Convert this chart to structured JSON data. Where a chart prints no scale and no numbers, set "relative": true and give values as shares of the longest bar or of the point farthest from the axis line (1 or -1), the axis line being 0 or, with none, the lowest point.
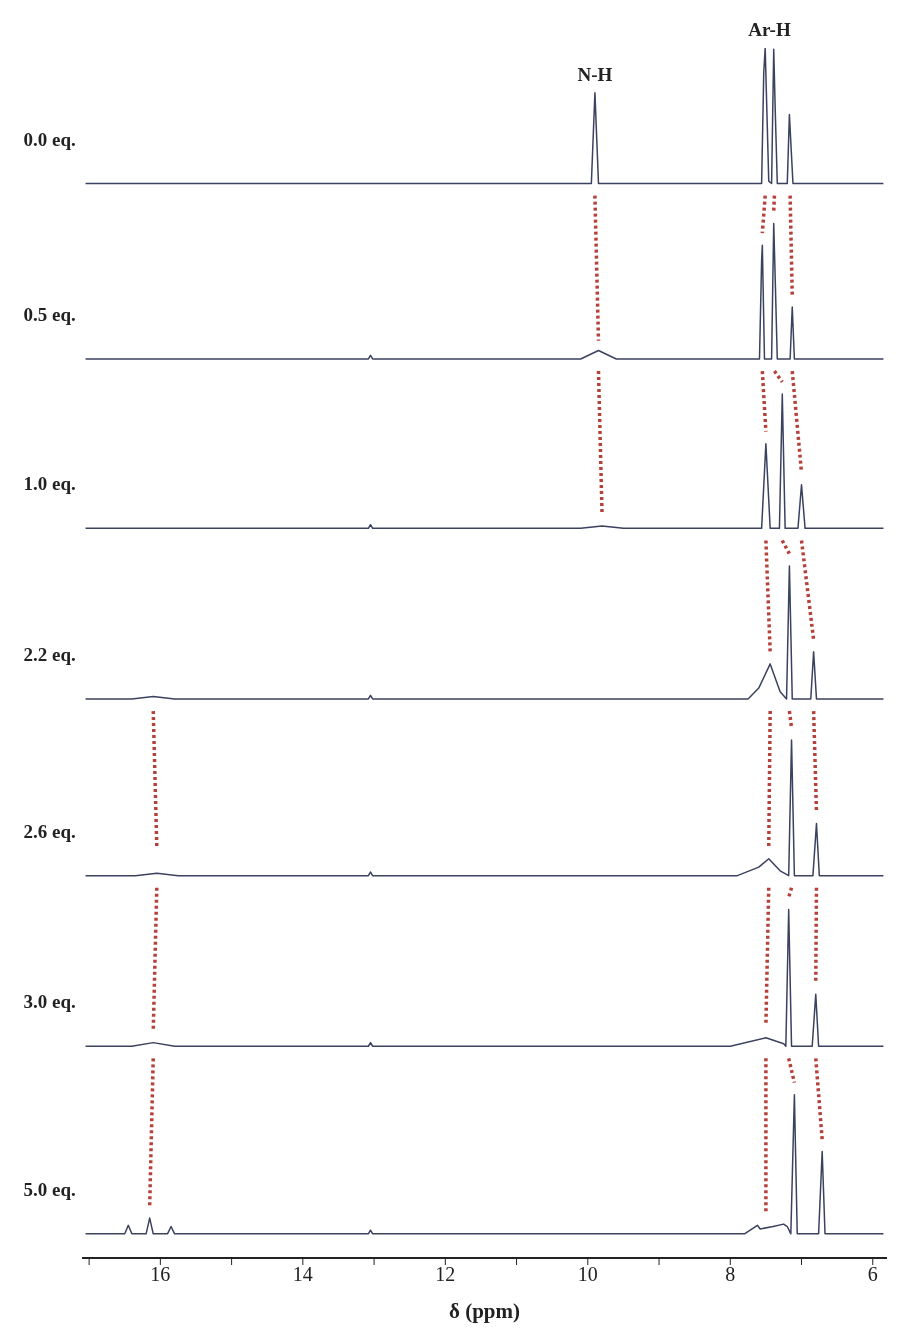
{
  "chart_data": {
    "type": "line",
    "relative": true,
    "xlim": [
      17.1,
      5.8
    ],
    "tick_labels": "x",
    "xlabel": "δ (ppm)",
    "xticks": [
      {
        "value": 17,
        "label": null
      },
      16,
      {
        "value": 15,
        "label": null
      },
      14,
      {
        "value": 13,
        "label": null
      },
      12,
      {
        "value": 11,
        "label": null
      },
      10,
      {
        "value": 9,
        "label": null
      },
      8,
      {
        "value": 7,
        "label": null
      },
      6
    ],
    "annotations": [
      {
        "text": "N-H",
        "x": 9.9,
        "y": 0.963
      },
      {
        "text": "Ar-H",
        "x": 7.45,
        "y": 1.0
      }
    ],
    "series": [
      {
        "name": "0.0 eq.",
        "color": "#3b4260",
        "x": [
          17.05,
          9.95,
          9.9,
          9.85,
          7.56,
          7.53,
          7.51,
          7.46,
          7.42,
          7.39,
          7.37,
          7.34,
          7.2,
          7.17,
          7.15,
          7.12,
          5.85
        ],
        "values": [
          0.888,
          0.888,
          0.963,
          0.888,
          0.888,
          0.98,
          1.0,
          0.89,
          0.888,
          0.999,
          0.951,
          0.888,
          0.888,
          0.945,
          0.922,
          0.888,
          0.888
        ]
      },
      {
        "name": "0.5 eq.",
        "color": "#3b4260",
        "x": [
          17.05,
          13.08,
          13.05,
          13.02,
          10.1,
          9.85,
          9.6,
          7.59,
          7.56,
          7.55,
          7.52,
          7.42,
          7.39,
          7.37,
          7.34,
          7.16,
          7.13,
          7.1,
          5.85
        ],
        "values": [
          0.743,
          0.743,
          0.746,
          0.743,
          0.743,
          0.75,
          0.743,
          0.743,
          0.824,
          0.837,
          0.743,
          0.743,
          0.855,
          0.811,
          0.743,
          0.743,
          0.786,
          0.743,
          0.743
        ]
      },
      {
        "name": "1.0 eq.",
        "color": "#3b4260",
        "x": [
          17.05,
          13.08,
          13.05,
          13.02,
          10.1,
          9.8,
          9.5,
          7.56,
          7.5,
          7.44,
          7.31,
          7.27,
          7.23,
          7.05,
          7.0,
          6.95,
          5.85
        ],
        "values": [
          0.603,
          0.603,
          0.606,
          0.603,
          0.603,
          0.605,
          0.603,
          0.603,
          0.673,
          0.603,
          0.603,
          0.714,
          0.603,
          0.603,
          0.639,
          0.603,
          0.603
        ]
      },
      {
        "name": "2.2 eq.",
        "color": "#3b4260",
        "x": [
          17.05,
          16.4,
          16.1,
          15.8,
          13.08,
          13.05,
          13.02,
          7.75,
          7.6,
          7.44,
          7.3,
          7.21,
          7.17,
          7.13,
          6.87,
          6.83,
          6.79,
          5.85
        ],
        "values": [
          0.462,
          0.462,
          0.464,
          0.462,
          0.462,
          0.465,
          0.462,
          0.462,
          0.471,
          0.491,
          0.468,
          0.462,
          0.572,
          0.462,
          0.462,
          0.501,
          0.462,
          0.462
        ]
      },
      {
        "name": "2.6 eq.",
        "color": "#3b4260",
        "x": [
          17.05,
          16.35,
          16.05,
          15.75,
          13.08,
          13.05,
          13.02,
          7.9,
          7.6,
          7.46,
          7.3,
          7.18,
          7.14,
          7.1,
          6.84,
          6.79,
          6.75,
          5.85
        ],
        "values": [
          0.316,
          0.316,
          0.318,
          0.316,
          0.316,
          0.319,
          0.316,
          0.316,
          0.323,
          0.33,
          0.32,
          0.316,
          0.428,
          0.316,
          0.316,
          0.359,
          0.316,
          0.316
        ]
      },
      {
        "name": "3.0 eq.",
        "color": "#3b4260",
        "x": [
          17.05,
          16.4,
          16.1,
          15.8,
          13.08,
          13.05,
          13.02,
          8.0,
          7.5,
          7.25,
          7.22,
          7.18,
          7.14,
          6.85,
          6.8,
          6.76,
          5.85
        ],
        "values": [
          0.175,
          0.175,
          0.178,
          0.175,
          0.175,
          0.178,
          0.175,
          0.175,
          0.182,
          0.177,
          0.175,
          0.288,
          0.175,
          0.175,
          0.218,
          0.175,
          0.175
        ]
      },
      {
        "name": "5.0 eq.",
        "color": "#3b4260",
        "x": [
          17.05,
          16.5,
          16.45,
          16.4,
          16.2,
          16.15,
          16.1,
          15.9,
          15.85,
          15.8,
          13.08,
          13.05,
          13.02,
          7.8,
          7.62,
          7.58,
          7.4,
          7.25,
          7.2,
          7.15,
          7.1,
          7.06,
          6.76,
          6.71,
          6.67,
          5.85
        ],
        "values": [
          0.02,
          0.02,
          0.027,
          0.02,
          0.02,
          0.033,
          0.02,
          0.02,
          0.026,
          0.02,
          0.02,
          0.023,
          0.02,
          0.02,
          0.027,
          0.024,
          0.026,
          0.028,
          0.026,
          0.02,
          0.135,
          0.02,
          0.02,
          0.088,
          0.02,
          0.02
        ]
      },
      {
        "color": "#b5413a",
        "line_style": "dotted",
        "x": [
          9.9,
          9.85
        ],
        "values": [
          0.878,
          0.758
        ]
      },
      {
        "color": "#b5413a",
        "line_style": "dotted",
        "x": [
          7.51,
          7.55
        ],
        "values": [
          0.878,
          0.847
        ]
      },
      {
        "color": "#b5413a",
        "line_style": "dotted",
        "x": [
          7.38,
          7.39
        ],
        "values": [
          0.878,
          0.865
        ]
      },
      {
        "color": "#b5413a",
        "line_style": "dotted",
        "x": [
          7.16,
          7.13
        ],
        "values": [
          0.878,
          0.796
        ]
      },
      {
        "color": "#b5413a",
        "line_style": "dotted",
        "x": [
          9.85,
          9.8
        ],
        "values": [
          0.733,
          0.615
        ]
      },
      {
        "color": "#b5413a",
        "line_style": "dotted",
        "x": [
          7.55,
          7.5
        ],
        "values": [
          0.733,
          0.683
        ]
      },
      {
        "color": "#b5413a",
        "line_style": "dotted",
        "x": [
          7.38,
          7.27
        ],
        "values": [
          0.733,
          0.724
        ]
      },
      {
        "color": "#b5413a",
        "line_style": "dotted",
        "x": [
          7.13,
          7.0
        ],
        "values": [
          0.733,
          0.649
        ]
      },
      {
        "color": "#b5413a",
        "line_style": "dotted",
        "x": [
          7.5,
          7.44
        ],
        "values": [
          0.593,
          0.501
        ]
      },
      {
        "color": "#b5413a",
        "line_style": "dotted",
        "x": [
          7.27,
          7.17
        ],
        "values": [
          0.593,
          0.582
        ]
      },
      {
        "color": "#b5413a",
        "line_style": "dotted",
        "x": [
          7.0,
          6.83
        ],
        "values": [
          0.593,
          0.511
        ]
      },
      {
        "color": "#b5413a",
        "line_style": "dotted",
        "x": [
          16.1,
          16.05
        ],
        "values": [
          0.452,
          0.34
        ]
      },
      {
        "color": "#b5413a",
        "line_style": "dotted",
        "x": [
          7.44,
          7.46
        ],
        "values": [
          0.452,
          0.34
        ]
      },
      {
        "color": "#b5413a",
        "line_style": "dotted",
        "x": [
          7.17,
          7.14
        ],
        "values": [
          0.452,
          0.438
        ]
      },
      {
        "color": "#b5413a",
        "line_style": "dotted",
        "x": [
          6.83,
          6.79
        ],
        "values": [
          0.452,
          0.369
        ]
      },
      {
        "color": "#b5413a",
        "line_style": "dotted",
        "x": [
          16.05,
          16.1
        ],
        "values": [
          0.306,
          0.188
        ]
      },
      {
        "color": "#b5413a",
        "line_style": "dotted",
        "x": [
          7.46,
          7.5
        ],
        "values": [
          0.306,
          0.192
        ]
      },
      {
        "color": "#b5413a",
        "line_style": "dotted",
        "x": [
          7.14,
          7.18
        ],
        "values": [
          0.306,
          0.298
        ]
      },
      {
        "color": "#b5413a",
        "line_style": "dotted",
        "x": [
          6.79,
          6.8
        ],
        "values": [
          0.306,
          0.228
        ]
      },
      {
        "color": "#b5413a",
        "line_style": "dotted",
        "x": [
          16.1,
          16.15
        ],
        "values": [
          0.165,
          0.043
        ]
      },
      {
        "color": "#b5413a",
        "line_style": "dotted",
        "x": [
          7.5,
          7.5
        ],
        "values": [
          0.165,
          0.037
        ]
      },
      {
        "color": "#b5413a",
        "line_style": "dotted",
        "x": [
          7.18,
          7.1
        ],
        "values": [
          0.165,
          0.145
        ]
      },
      {
        "color": "#b5413a",
        "line_style": "dotted",
        "x": [
          6.8,
          6.71
        ],
        "values": [
          0.165,
          0.098
        ]
      }
    ]
  }
}
